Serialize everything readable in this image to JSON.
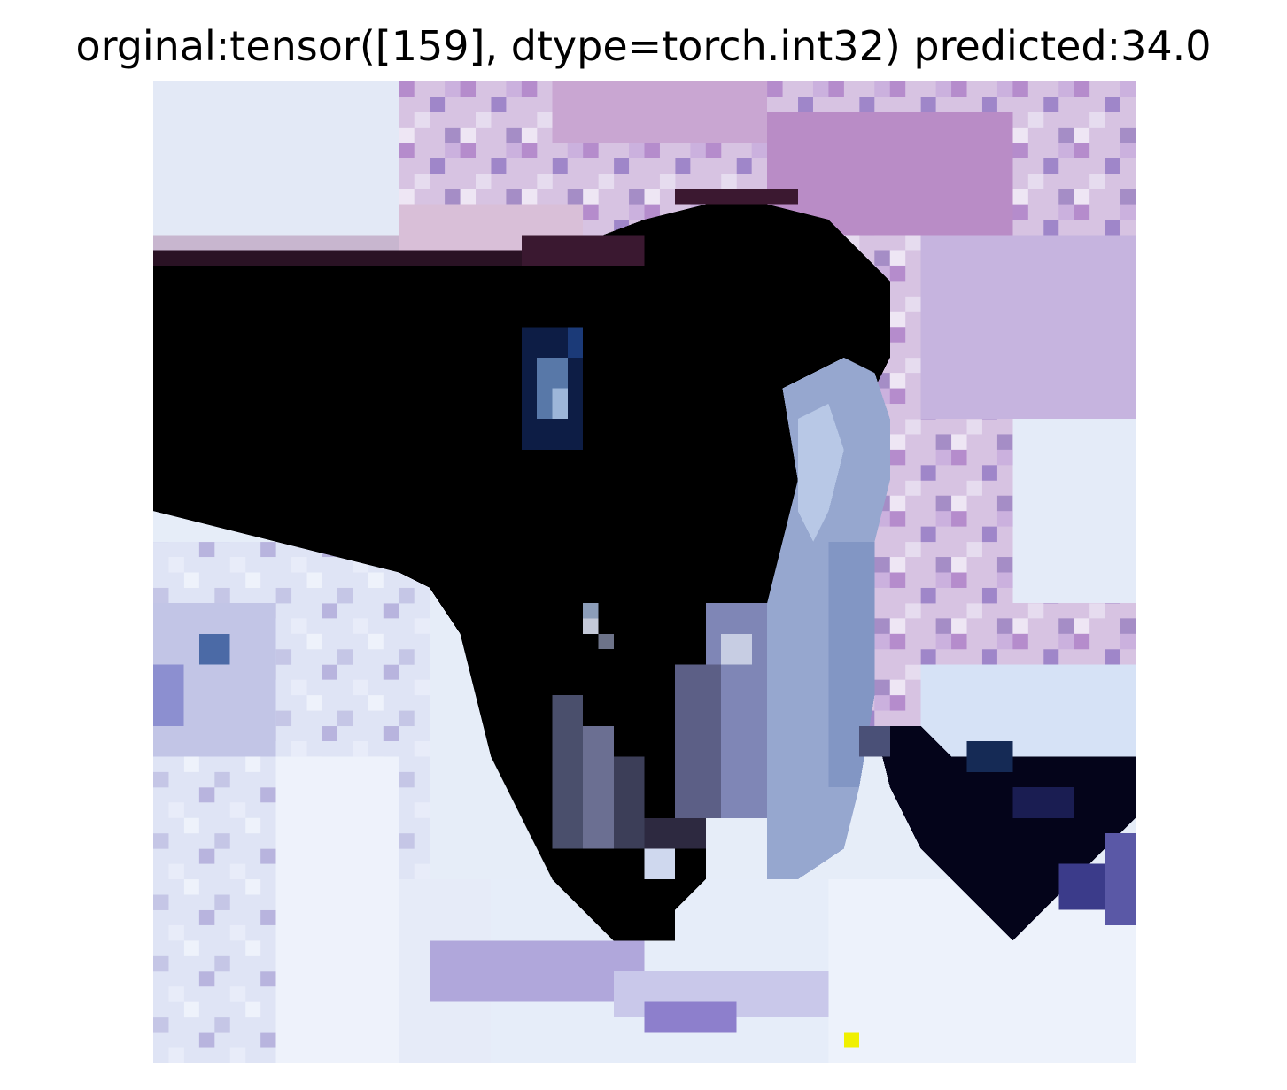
{
  "figure": {
    "title": "orginal:tensor([159], dtype=torch.int32) predicted:34.0"
  },
  "image": {
    "description_icon": "pixelated-photo-icon",
    "colors": {
      "snow": "#e9eef9",
      "snow_shadow": "#c8cbe6",
      "lavender": "#b79ccb",
      "purple_texture": "#a77fc0",
      "dark_body": "#000000",
      "navy_detail": "#0b1a4a",
      "blue_highlight": "#8fb3e0",
      "slate_grey": "#9fa6cf",
      "marker_yellow": "#f0f000"
    }
  }
}
